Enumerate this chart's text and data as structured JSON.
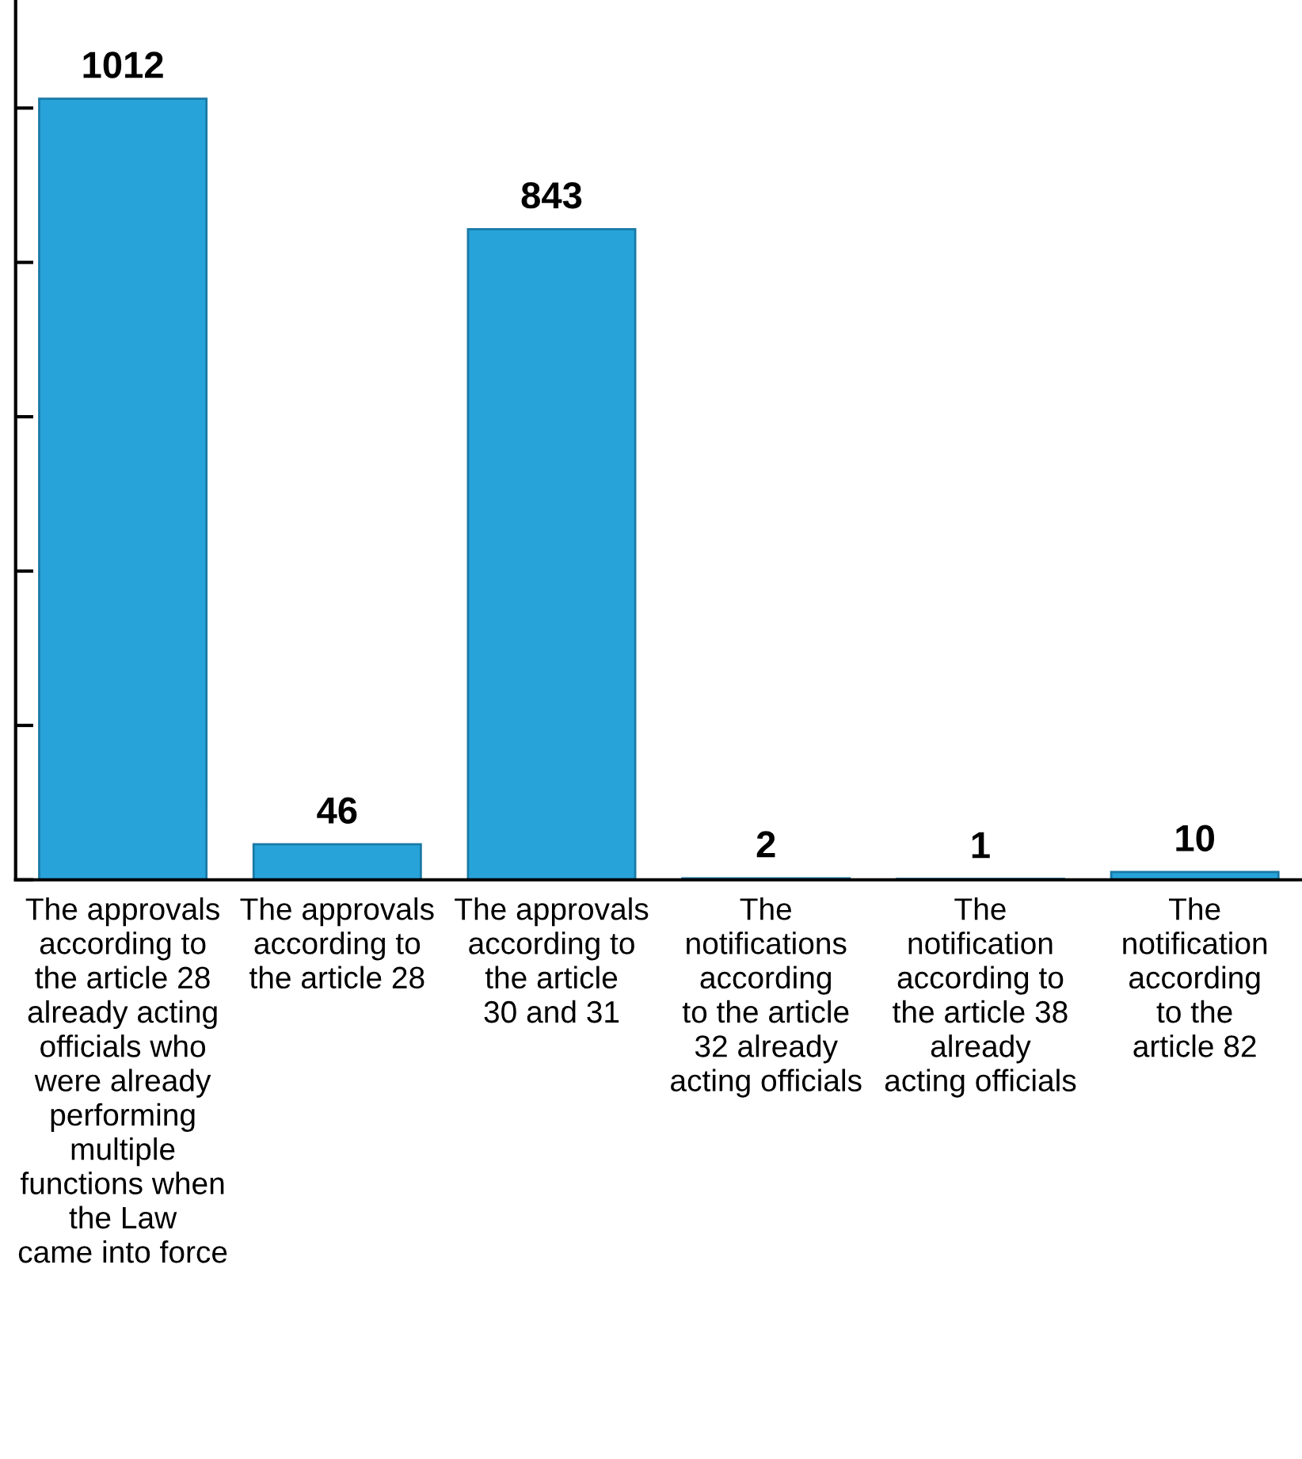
{
  "chart_data": {
    "type": "bar",
    "categories": [
      "The approvals\naccording to\nthe article 28\nalready acting\nofficials who\nwere already\nperforming\nmultiple\nfunctions when\nthe Law\ncame into force",
      "The approvals\naccording to\nthe article 28",
      "The approvals\naccording to\nthe article\n30 and 31",
      "The\nnotifications\naccording\nto the article\n32 already\nacting officials",
      "The\nnotification\naccording to\nthe article 38\nalready\nacting officials",
      "The\nnotification\naccording\nto the\narticle 82"
    ],
    "values": [
      1012,
      46,
      843,
      2,
      1,
      10
    ],
    "color": "#27a3d9",
    "ylim": [
      0,
      1140
    ],
    "yticks": [
      {
        "value": 0,
        "label": null
      },
      {
        "value": 200,
        "label": null
      },
      {
        "value": 400,
        "label": null
      },
      {
        "value": 600,
        "label": null
      },
      {
        "value": 800,
        "label": null
      },
      {
        "value": 1000,
        "label": null
      }
    ],
    "data_labels": true,
    "grid": false,
    "legend": false
  }
}
